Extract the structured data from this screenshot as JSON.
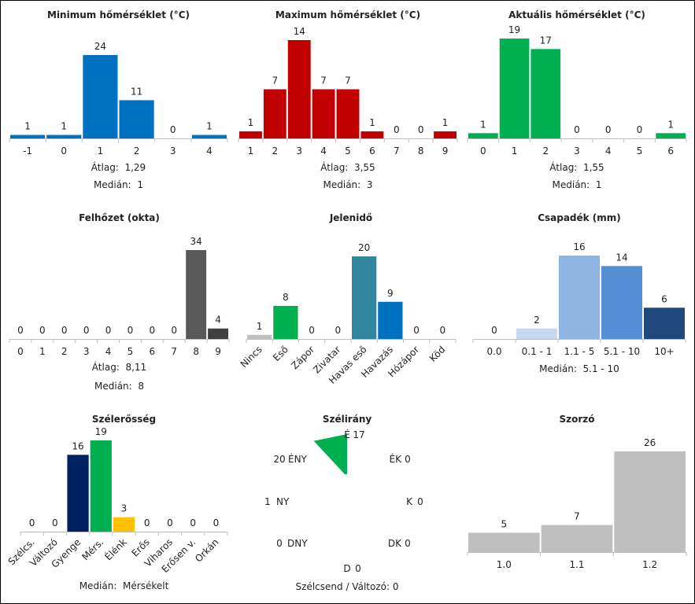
{
  "chart_data": [
    {
      "id": "min",
      "type": "bar",
      "title": "Minimum hőmérséklet (°C)",
      "categories": [
        "-1",
        "0",
        "1",
        "2",
        "3",
        "4"
      ],
      "values": [
        1,
        1,
        24,
        11,
        0,
        1
      ],
      "colors": [
        "#0070C0",
        "#0070C0",
        "#0070C0",
        "#0070C0",
        "#0070C0",
        "#0070C0"
      ],
      "stats": [
        {
          "label": "Átlag:",
          "value": "1,29"
        },
        {
          "label": "Medián:",
          "value": "1"
        }
      ]
    },
    {
      "id": "max",
      "type": "bar",
      "title": "Maximum hőmérséklet (°C)",
      "categories": [
        "1",
        "2",
        "3",
        "4",
        "5",
        "6",
        "7",
        "8",
        "9"
      ],
      "values": [
        1,
        7,
        14,
        7,
        7,
        1,
        0,
        0,
        1
      ],
      "colors": [
        "#C00000",
        "#C00000",
        "#C00000",
        "#C00000",
        "#C00000",
        "#C00000",
        "#C00000",
        "#C00000",
        "#C00000"
      ],
      "stats": [
        {
          "label": "Átlag:",
          "value": "3,55"
        },
        {
          "label": "Medián:",
          "value": "3"
        }
      ]
    },
    {
      "id": "act",
      "type": "bar",
      "title": "Aktuális hőmérséklet (°C)",
      "categories": [
        "0",
        "1",
        "2",
        "3",
        "4",
        "5",
        "6"
      ],
      "values": [
        1,
        19,
        17,
        0,
        0,
        0,
        1
      ],
      "colors": [
        "#00B050",
        "#00B050",
        "#00B050",
        "#00B050",
        "#00B050",
        "#00B050",
        "#00B050"
      ],
      "stats": [
        {
          "label": "Átlag:",
          "value": "1,55"
        },
        {
          "label": "Medián:",
          "value": "1"
        }
      ]
    },
    {
      "id": "cloud",
      "type": "bar",
      "title": "Felhőzet (okta)",
      "categories": [
        "0",
        "1",
        "2",
        "3",
        "4",
        "5",
        "6",
        "7",
        "8",
        "9"
      ],
      "values": [
        0,
        0,
        0,
        0,
        0,
        0,
        0,
        0,
        34,
        4
      ],
      "colors": [
        "#595959",
        "#595959",
        "#595959",
        "#595959",
        "#595959",
        "#595959",
        "#595959",
        "#595959",
        "#595959",
        "#404040"
      ],
      "stats": [
        {
          "label": "Átlag:",
          "value": "8,11"
        },
        {
          "label": "Medián:",
          "value": "8"
        }
      ]
    },
    {
      "id": "wx",
      "type": "bar",
      "title": "Jelenidő",
      "categories": [
        "Nincs",
        "Eső",
        "Zápor",
        "Zivatar",
        "Havas eső",
        "Havazás",
        "Hózápor",
        "Köd"
      ],
      "values": [
        1,
        8,
        0,
        0,
        20,
        9,
        0,
        0
      ],
      "colors": [
        "#BFBFBF",
        "#00B050",
        "#7F7F7F",
        "#7F7F7F",
        "#31859C",
        "#0070C0",
        "#7F7F7F",
        "#7F7F7F"
      ],
      "stats": []
    },
    {
      "id": "precip",
      "type": "bar",
      "title": "Csapadék (mm)",
      "categories": [
        "0.0",
        "0.1 - 1",
        "1.1 - 5",
        "5.1 - 10",
        "10+"
      ],
      "values": [
        0,
        2,
        16,
        14,
        6
      ],
      "colors": [
        "#C6D9F1",
        "#C6D9F1",
        "#8DB4E2",
        "#558ED5",
        "#1F497D"
      ],
      "stats": [
        {
          "label": "Medián:",
          "value": "5.1 - 10"
        }
      ]
    },
    {
      "id": "wind",
      "type": "bar",
      "title": "Szélerősség",
      "categories": [
        "Szélcs.",
        "Változó",
        "Gyenge",
        "Mérs.",
        "Élénk",
        "Erős",
        "Viharos",
        "Erősen v.",
        "Orkán"
      ],
      "values": [
        0,
        0,
        16,
        19,
        3,
        0,
        0,
        0,
        0
      ],
      "colors": [
        "#002060",
        "#002060",
        "#002060",
        "#00B050",
        "#FFC000",
        "#7F7F7F",
        "#7F7F7F",
        "#7F7F7F",
        "#7F7F7F"
      ],
      "stats": [
        {
          "label": "Medián:",
          "value": "Mérsékelt"
        }
      ]
    },
    {
      "id": "dir",
      "type": "radar",
      "title": "Szélirány",
      "color": "#00B050",
      "directions": [
        {
          "label": "É",
          "value": 17
        },
        {
          "label": "ÉK",
          "value": 0
        },
        {
          "label": "K",
          "value": 0
        },
        {
          "label": "DK",
          "value": 0
        },
        {
          "label": "D",
          "value": 0
        },
        {
          "label": "DNY",
          "value": 0
        },
        {
          "label": "NY",
          "value": 1
        },
        {
          "label": "ÉNY",
          "value": 20
        }
      ],
      "footer": "Szélcsend / Változó: 0"
    },
    {
      "id": "mult",
      "type": "bar",
      "title": "Szorzó",
      "categories": [
        "1.0",
        "1.1",
        "1.2"
      ],
      "values": [
        5,
        7,
        26
      ],
      "colors": [
        "#BFBFBF",
        "#BFBFBF",
        "#BFBFBF"
      ],
      "stats": []
    }
  ]
}
